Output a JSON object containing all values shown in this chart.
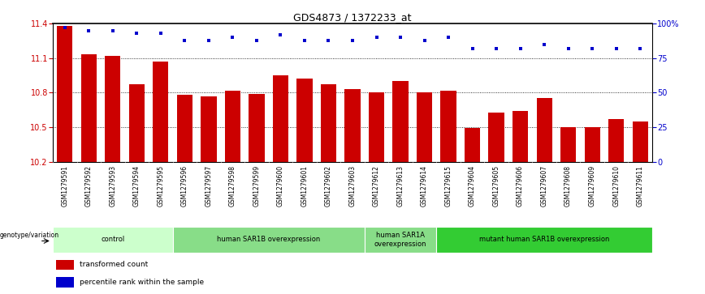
{
  "title": "GDS4873 / 1372233_at",
  "samples": [
    "GSM1279591",
    "GSM1279592",
    "GSM1279593",
    "GSM1279594",
    "GSM1279595",
    "GSM1279596",
    "GSM1279597",
    "GSM1279598",
    "GSM1279599",
    "GSM1279600",
    "GSM1279601",
    "GSM1279602",
    "GSM1279603",
    "GSM1279612",
    "GSM1279613",
    "GSM1279614",
    "GSM1279615",
    "GSM1279604",
    "GSM1279605",
    "GSM1279606",
    "GSM1279607",
    "GSM1279608",
    "GSM1279609",
    "GSM1279610",
    "GSM1279611"
  ],
  "bar_values": [
    11.38,
    11.13,
    11.12,
    10.87,
    11.07,
    10.78,
    10.77,
    10.82,
    10.79,
    10.95,
    10.92,
    10.87,
    10.83,
    10.8,
    10.9,
    10.8,
    10.82,
    10.49,
    10.63,
    10.64,
    10.75,
    10.5,
    10.5,
    10.57,
    10.55
  ],
  "percentile_values": [
    97,
    95,
    95,
    93,
    93,
    88,
    88,
    90,
    88,
    92,
    88,
    88,
    88,
    90,
    90,
    88,
    90,
    82,
    82,
    82,
    85,
    82,
    82,
    82,
    82
  ],
  "bar_color": "#cc0000",
  "dot_color": "#0000cc",
  "ylim_left": [
    10.2,
    11.4
  ],
  "ylim_right": [
    0,
    100
  ],
  "yticks_left": [
    10.2,
    10.5,
    10.8,
    11.1,
    11.4
  ],
  "yticks_right": [
    0,
    25,
    50,
    75,
    100
  ],
  "ytick_labels_left": [
    "10.2",
    "10.5",
    "10.8",
    "11.1",
    "11.4"
  ],
  "ytick_labels_right": [
    "0",
    "25",
    "50",
    "75",
    "100%"
  ],
  "grid_lines": [
    10.5,
    10.8,
    11.1
  ],
  "groups": [
    {
      "label": "control",
      "start": 0,
      "end": 5,
      "color": "#ccffcc"
    },
    {
      "label": "human SAR1B overexpression",
      "start": 5,
      "end": 13,
      "color": "#88dd88"
    },
    {
      "label": "human SAR1A\noverexpression",
      "start": 13,
      "end": 16,
      "color": "#88dd88"
    },
    {
      "label": "mutant human SAR1B overexpression",
      "start": 16,
      "end": 25,
      "color": "#33cc33"
    }
  ],
  "legend_items": [
    {
      "label": "transformed count",
      "color": "#cc0000"
    },
    {
      "label": "percentile rank within the sample",
      "color": "#0000cc"
    }
  ],
  "genotype_label": "genotype/variation",
  "background_color": "#ffffff",
  "xticklabel_bg": "#cccccc",
  "separator_color": "#aaaaaa"
}
